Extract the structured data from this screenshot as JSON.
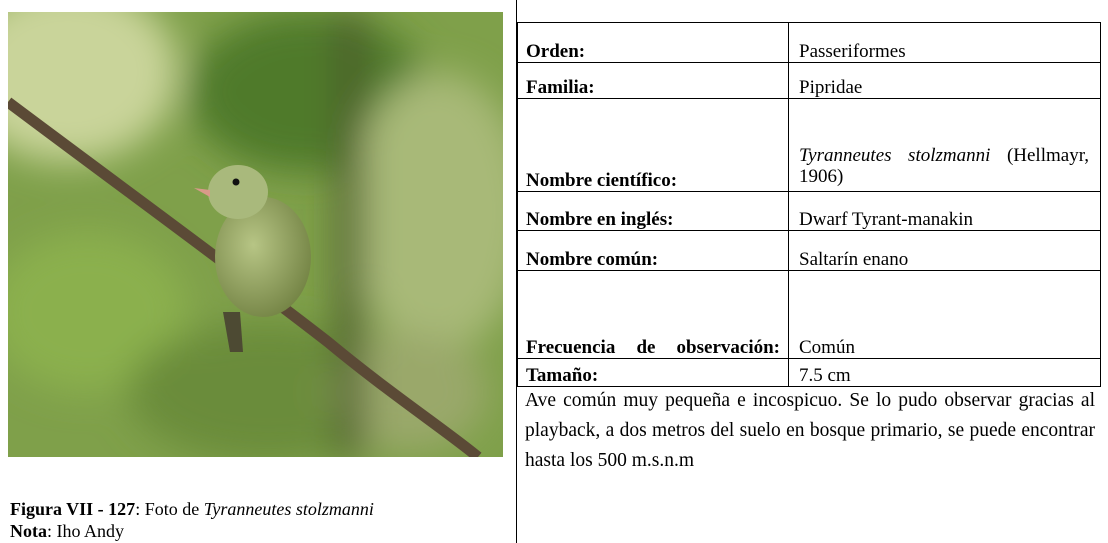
{
  "table": {
    "rows": [
      {
        "label": "Orden:",
        "value": "Passeriformes"
      },
      {
        "label": "Familia:",
        "value": "Pipridae"
      },
      {
        "label": "Nombre científico:",
        "value_italic": "Tyranneutes stolzmanni",
        "value": "(Hellmayr, 1906)"
      },
      {
        "label": "Nombre en inglés:",
        "value": "Dwarf Tyrant-manakin"
      },
      {
        "label": "Nombre común:",
        "value": "Saltarín enano"
      },
      {
        "label": "Frecuencia de observación:",
        "value": "Común"
      },
      {
        "label": "Tamaño:",
        "value": "7.5 cm"
      }
    ],
    "description": "Ave común muy pequeña e incospicuo. Se lo pudo observar gracias al playback, a dos metros del suelo en bosque primario, se puede encontrar hasta los 500 m.s.n.m"
  },
  "caption": {
    "figure": "Figura VII - 127",
    "text": ": Foto de ",
    "species": "Tyranneutes stolzmanni",
    "note_label": "Nota",
    "note": ": Iho Andy"
  }
}
